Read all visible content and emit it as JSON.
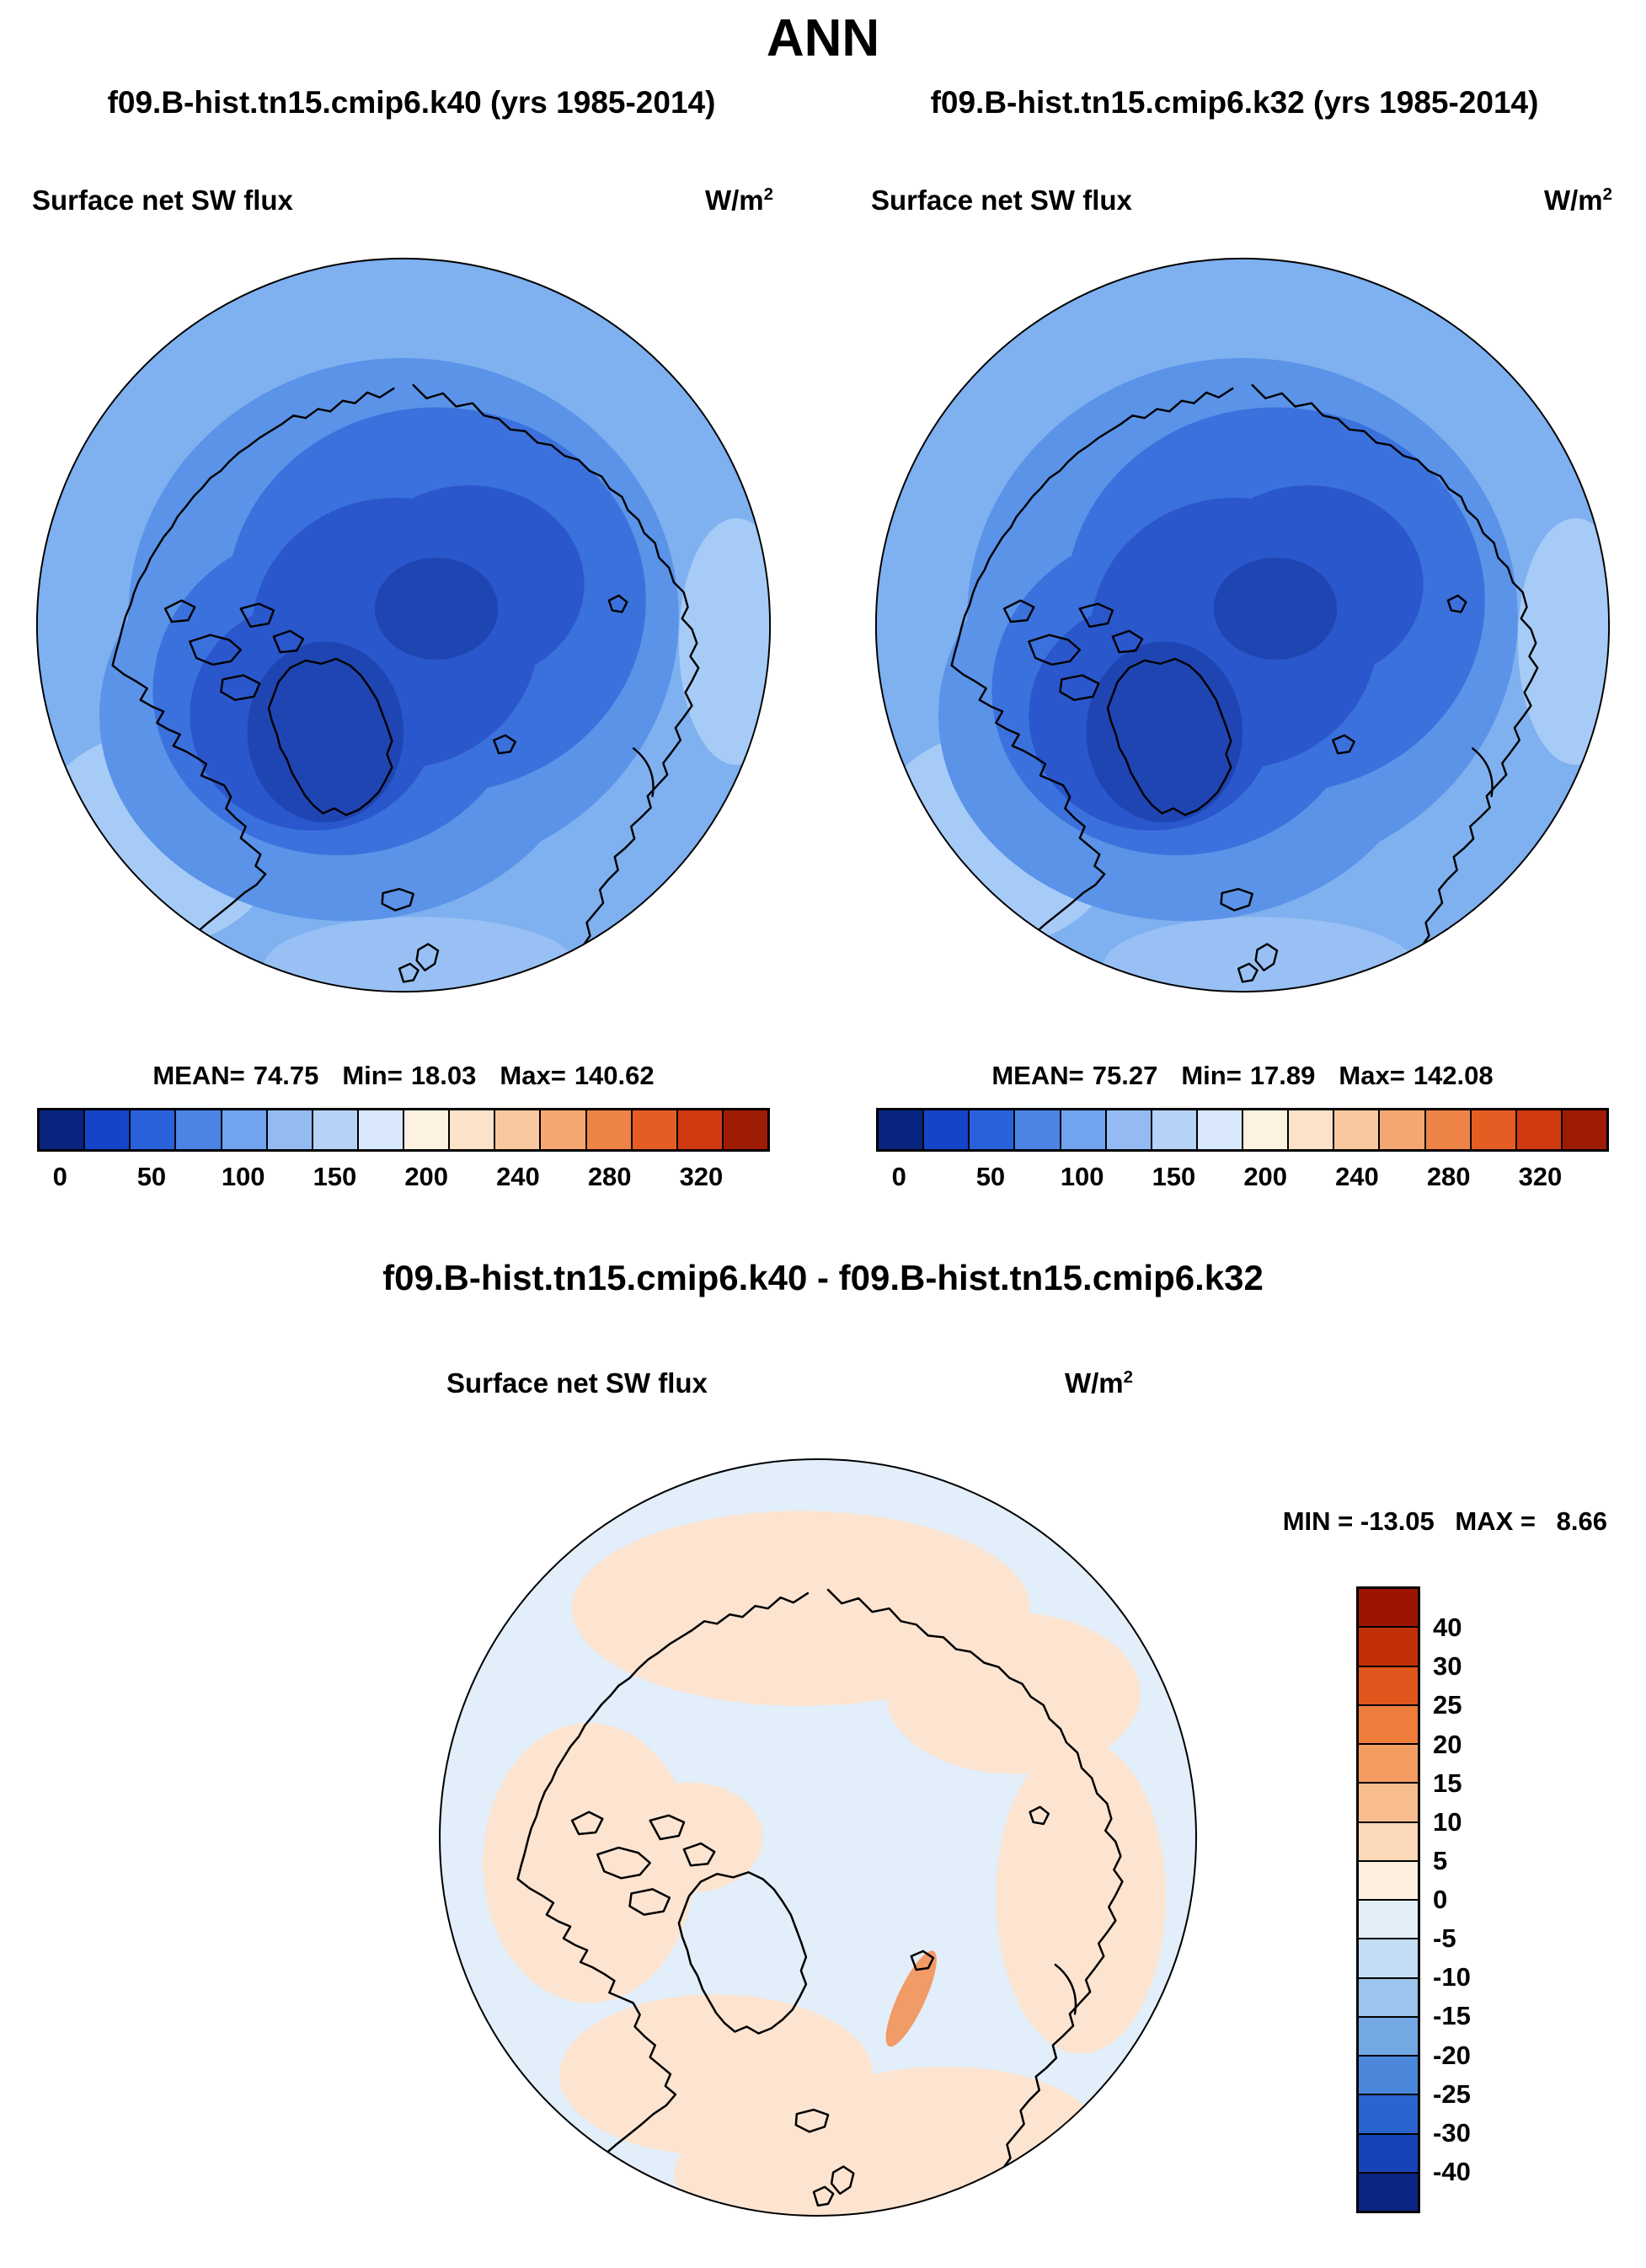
{
  "page_title": "ANN",
  "units": {
    "base": "W/m",
    "exp": "2"
  },
  "panels": [
    {
      "case_title": "f09.B-hist.tn15.cmip6.k40 (yrs 1985-2014)",
      "field": "Surface net SW flux",
      "stats": {
        "mean_label": "MEAN=",
        "mean": "74.75",
        "min_label": "Min=",
        "min": "18.03",
        "max_label": "Max=",
        "max": "140.62"
      }
    },
    {
      "case_title": "f09.B-hist.tn15.cmip6.k32 (yrs 1985-2014)",
      "field": "Surface net SW flux",
      "stats": {
        "mean_label": "MEAN=",
        "mean": "75.27",
        "min_label": "Min=",
        "min": "17.89",
        "max_label": "Max=",
        "max": "142.08"
      }
    }
  ],
  "diff": {
    "heading": "f09.B-hist.tn15.cmip6.k40 - f09.B-hist.tn15.cmip6.k32",
    "field": "Surface net SW flux",
    "min_label": "MIN =",
    "min": "-13.05",
    "max_label": "MAX =",
    "max": "8.66"
  },
  "flux_colorbar": {
    "tick_labels": [
      "0",
      "50",
      "100",
      "150",
      "200",
      "240",
      "280",
      "320"
    ],
    "colors": [
      "#08247e",
      "#1445c8",
      "#2a62dc",
      "#4c84e6",
      "#71a3ee",
      "#93bbf2",
      "#b6d2f7",
      "#d8e7fb",
      "#fdf2e2",
      "#fbe2c8",
      "#f8c8a0",
      "#f4a871",
      "#ee8347",
      "#e45e24",
      "#cf3a10",
      "#9e1c04"
    ]
  },
  "diff_colorbar": {
    "tick_labels": [
      "40",
      "30",
      "25",
      "20",
      "15",
      "10",
      "5",
      "0",
      "-5",
      "-10",
      "-15",
      "-20",
      "-25",
      "-30",
      "-40"
    ],
    "colors": [
      "#9e1403",
      "#c23008",
      "#e0561c",
      "#ee7d3b",
      "#f49d62",
      "#f8bd8e",
      "#fbd8b8",
      "#fdeedd",
      "#e2eef8",
      "#c3dcf3",
      "#9cc4ec",
      "#73a8e4",
      "#4b87da",
      "#2a64ce",
      "#1644b6",
      "#0a2582"
    ]
  },
  "chart_data": [
    {
      "type": "heatmap",
      "projection": "north_polar_stereographic",
      "season": "ANN",
      "run": "f09.B-hist.tn15.cmip6.k40",
      "years": "1985-2014",
      "title": "Surface net SW flux",
      "units": "W/m^2",
      "stats": {
        "mean": 74.75,
        "min": 18.03,
        "max": 140.62
      },
      "colorbar_ticks": [
        0,
        50,
        100,
        150,
        200,
        240,
        280,
        320
      ],
      "legend_position": "bottom"
    },
    {
      "type": "heatmap",
      "projection": "north_polar_stereographic",
      "season": "ANN",
      "run": "f09.B-hist.tn15.cmip6.k32",
      "years": "1985-2014",
      "title": "Surface net SW flux",
      "units": "W/m^2",
      "stats": {
        "mean": 75.27,
        "min": 17.89,
        "max": 142.08
      },
      "colorbar_ticks": [
        0,
        50,
        100,
        150,
        200,
        240,
        280,
        320
      ],
      "legend_position": "bottom"
    },
    {
      "type": "heatmap",
      "projection": "north_polar_stereographic",
      "season": "ANN",
      "run": "f09.B-hist.tn15.cmip6.k40 - f09.B-hist.tn15.cmip6.k32",
      "title": "Surface net SW flux",
      "units": "W/m^2",
      "stats": {
        "min": -13.05,
        "max": 8.66
      },
      "colorbar_ticks": [
        40,
        30,
        25,
        20,
        15,
        10,
        5,
        0,
        -5,
        -10,
        -15,
        -20,
        -25,
        -30,
        -40
      ],
      "legend_position": "right"
    }
  ]
}
